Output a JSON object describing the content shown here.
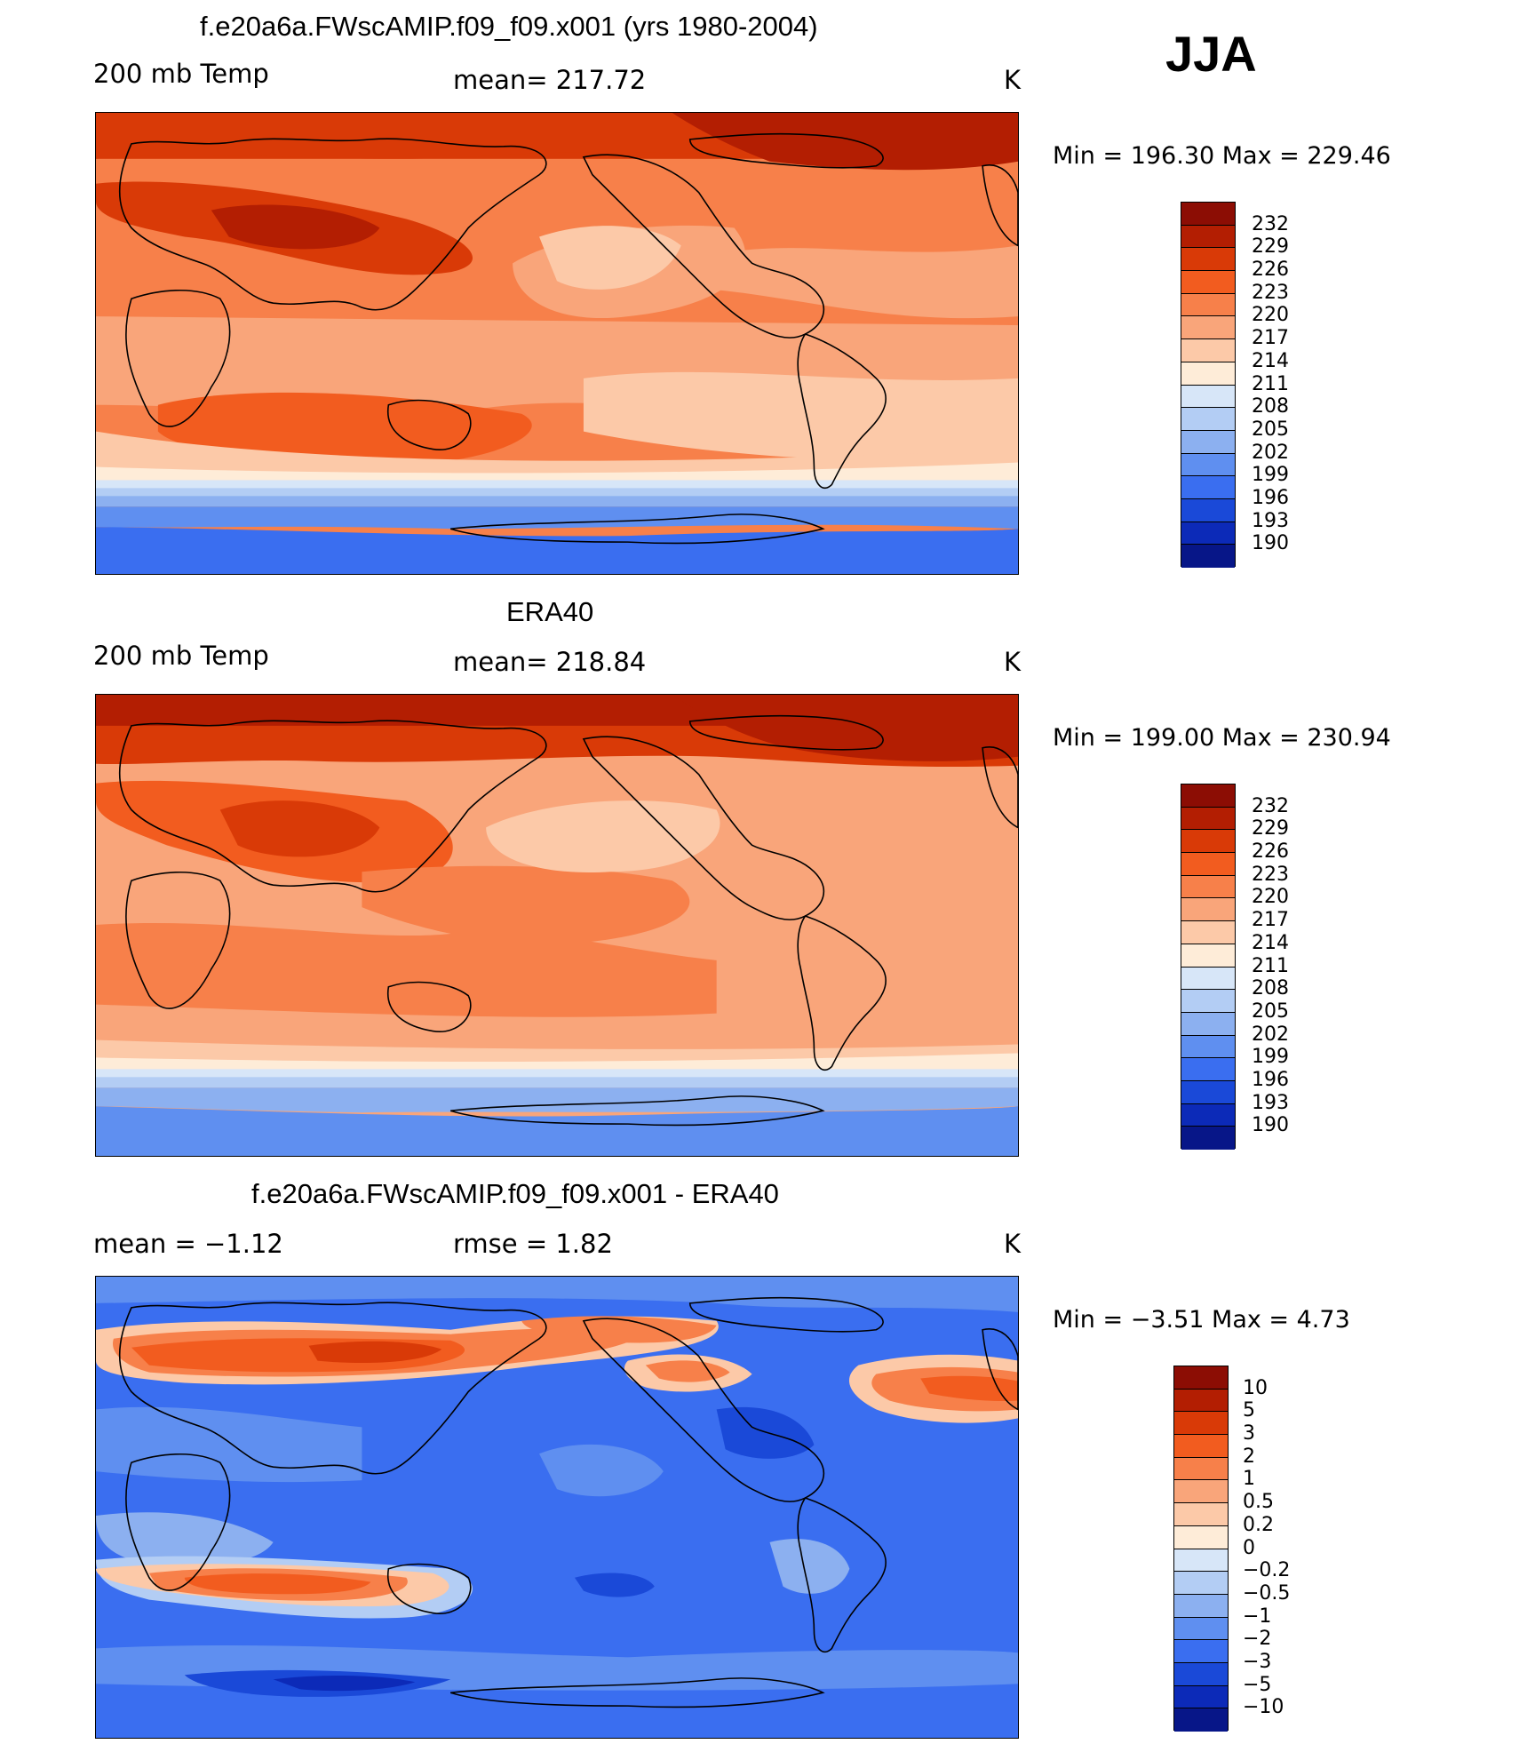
{
  "season": "JJA",
  "panels": [
    {
      "title": "f.e20a6a.FWscAMIP.f09_f09.x001 (yrs 1980-2004)",
      "left_label": "200 mb Temp",
      "center_label": "mean= 217.72",
      "units": "K",
      "minmax": "Min = 196.30 Max = 229.46",
      "colorbar_labels": [
        "232",
        "229",
        "226",
        "223",
        "220",
        "217",
        "214",
        "211",
        "208",
        "205",
        "202",
        "199",
        "196",
        "193",
        "190"
      ]
    },
    {
      "title": "ERA40",
      "left_label": "200 mb Temp",
      "center_label": "mean= 218.84",
      "units": "K",
      "minmax": "Min = 199.00 Max = 230.94",
      "colorbar_labels": [
        "232",
        "229",
        "226",
        "223",
        "220",
        "217",
        "214",
        "211",
        "208",
        "205",
        "202",
        "199",
        "196",
        "193",
        "190"
      ]
    },
    {
      "title": "f.e20a6a.FWscAMIP.f09_f09.x001 - ERA40",
      "left_label": "mean = −1.12",
      "center_label": "rmse = 1.82",
      "units": "K",
      "minmax": "Min = −3.51 Max = 4.73",
      "colorbar_labels": [
        "10",
        "5",
        "3",
        "2",
        "1",
        "0.5",
        "0.2",
        "0",
        "−0.2",
        "−0.5",
        "−1",
        "−2",
        "−3",
        "−5",
        "−10"
      ]
    }
  ],
  "colors": {
    "temp_scale": [
      "#8c0d04",
      "#b31e02",
      "#d93a07",
      "#f25c1f",
      "#f7804a",
      "#f9a57a",
      "#fcc9a8",
      "#feecd8",
      "#d7e6f8",
      "#b3cdf4",
      "#8cb0f0",
      "#5f8ff0",
      "#3a6ef0",
      "#1a49d8",
      "#0c2ab8",
      "#071688"
    ],
    "diff_scale": [
      "#8c0d04",
      "#b31e02",
      "#d93a07",
      "#f25c1f",
      "#f7804a",
      "#f9a57a",
      "#fcc9a8",
      "#feecd8",
      "#d7e6f8",
      "#b3cdf4",
      "#8cb0f0",
      "#5f8ff0",
      "#3a6ef0",
      "#1a49d8",
      "#0c2ab8",
      "#071688"
    ]
  }
}
